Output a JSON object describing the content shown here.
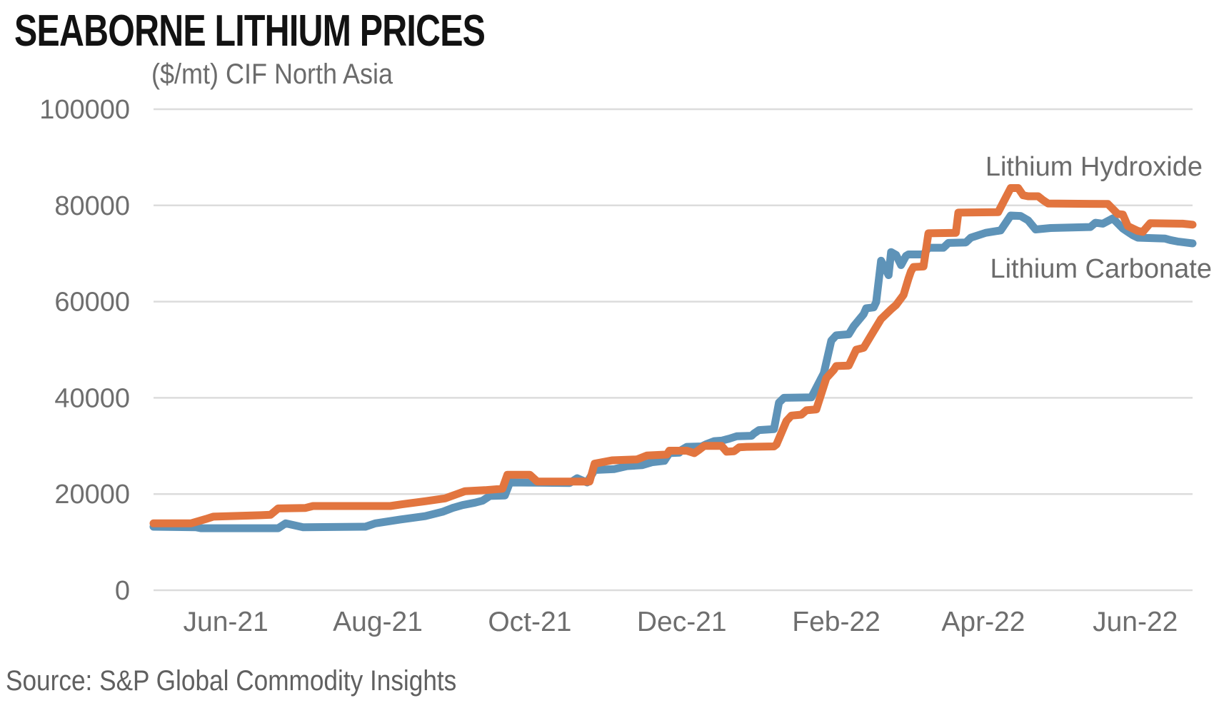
{
  "title": "SEABORNE LITHIUM PRICES",
  "subtitle": "($/mt) CIF North Asia",
  "source": "Source: S&P Global Commodity Insights",
  "colors": {
    "hydroxide": "#E2753F",
    "carbonate": "#5E93B8",
    "grid": "#dcdcdc",
    "axis_text": "#6e6e6e",
    "title_text": "#121212"
  },
  "chart_data": {
    "type": "line",
    "title": "SEABORNE LITHIUM PRICES",
    "subtitle_unit": "($/mt) CIF North Asia",
    "grid": true,
    "legend_position": "inline-right-of-lines",
    "x_axis": {
      "range": [
        "2021-05-03",
        "2022-06-24"
      ],
      "ticks": [
        {
          "label": "Jun-21",
          "date": "2021-06-01"
        },
        {
          "label": "Aug-21",
          "date": "2021-08-01"
        },
        {
          "label": "Oct-21",
          "date": "2021-10-01"
        },
        {
          "label": "Dec-21",
          "date": "2021-12-01"
        },
        {
          "label": "Feb-22",
          "date": "2022-02-01"
        },
        {
          "label": "Apr-22",
          "date": "2022-04-01"
        },
        {
          "label": "Jun-22",
          "date": "2022-06-01"
        }
      ]
    },
    "y_axis": {
      "range": [
        0,
        100000
      ],
      "ticks": [
        {
          "label": "0",
          "value": 0
        },
        {
          "label": "20000",
          "value": 20000
        },
        {
          "label": "40000",
          "value": 40000
        },
        {
          "label": "60000",
          "value": 60000
        },
        {
          "label": "80000",
          "value": 80000
        },
        {
          "label": "100000",
          "value": 100000
        }
      ]
    },
    "series": [
      {
        "name": "Lithium Carbonate",
        "color": "#5E93B8",
        "unit": "$/mt",
        "points": [
          [
            "2021-05-03",
            13200
          ],
          [
            "2021-05-20",
            13100
          ],
          [
            "2021-05-22",
            12900
          ],
          [
            "2021-06-22",
            12900
          ],
          [
            "2021-06-25",
            13900
          ],
          [
            "2021-07-02",
            13100
          ],
          [
            "2021-07-27",
            13200
          ],
          [
            "2021-07-31",
            13900
          ],
          [
            "2021-08-10",
            14700
          ],
          [
            "2021-08-20",
            15400
          ],
          [
            "2021-08-27",
            16300
          ],
          [
            "2021-08-31",
            17100
          ],
          [
            "2021-09-04",
            17700
          ],
          [
            "2021-09-09",
            18200
          ],
          [
            "2021-09-12",
            18600
          ],
          [
            "2021-09-15",
            19600
          ],
          [
            "2021-09-21",
            19700
          ],
          [
            "2021-09-23",
            22400
          ],
          [
            "2021-10-17",
            22300
          ],
          [
            "2021-10-20",
            23300
          ],
          [
            "2021-10-24",
            22400
          ],
          [
            "2021-10-27",
            25000
          ],
          [
            "2021-11-04",
            25200
          ],
          [
            "2021-11-09",
            25800
          ],
          [
            "2021-11-15",
            26000
          ],
          [
            "2021-11-19",
            26600
          ],
          [
            "2021-11-24",
            26900
          ],
          [
            "2021-11-26",
            28500
          ],
          [
            "2021-11-30",
            28600
          ],
          [
            "2021-12-01",
            29200
          ],
          [
            "2021-12-03",
            29800
          ],
          [
            "2021-12-09",
            29900
          ],
          [
            "2021-12-11",
            30400
          ],
          [
            "2021-12-14",
            31000
          ],
          [
            "2021-12-17",
            31100
          ],
          [
            "2021-12-20",
            31500
          ],
          [
            "2021-12-23",
            32000
          ],
          [
            "2021-12-29",
            32100
          ],
          [
            "2021-12-30",
            32600
          ],
          [
            "2022-01-01",
            33300
          ],
          [
            "2022-01-07",
            33500
          ],
          [
            "2022-01-09",
            39000
          ],
          [
            "2022-01-11",
            40000
          ],
          [
            "2022-01-22",
            40100
          ],
          [
            "2022-01-27",
            45100
          ],
          [
            "2022-01-30",
            51900
          ],
          [
            "2022-02-01",
            53000
          ],
          [
            "2022-02-06",
            53200
          ],
          [
            "2022-02-08",
            54900
          ],
          [
            "2022-02-12",
            57400
          ],
          [
            "2022-02-13",
            58600
          ],
          [
            "2022-02-16",
            58800
          ],
          [
            "2022-02-17",
            59900
          ],
          [
            "2022-02-19",
            68500
          ],
          [
            "2022-02-22",
            65500
          ],
          [
            "2022-02-23",
            70300
          ],
          [
            "2022-02-25",
            69700
          ],
          [
            "2022-02-27",
            67600
          ],
          [
            "2022-03-01",
            69500
          ],
          [
            "2022-03-02",
            69800
          ],
          [
            "2022-03-08",
            69800
          ],
          [
            "2022-03-10",
            71200
          ],
          [
            "2022-03-16",
            71200
          ],
          [
            "2022-03-18",
            72200
          ],
          [
            "2022-03-25",
            72300
          ],
          [
            "2022-03-27",
            73300
          ],
          [
            "2022-04-02",
            74300
          ],
          [
            "2022-04-08",
            74800
          ],
          [
            "2022-04-12",
            77900
          ],
          [
            "2022-04-16",
            77800
          ],
          [
            "2022-04-19",
            76900
          ],
          [
            "2022-04-22",
            75000
          ],
          [
            "2022-04-28",
            75300
          ],
          [
            "2022-05-14",
            75500
          ],
          [
            "2022-05-16",
            76400
          ],
          [
            "2022-05-19",
            76200
          ],
          [
            "2022-05-23",
            77300
          ],
          [
            "2022-05-27",
            75200
          ],
          [
            "2022-05-29",
            74500
          ],
          [
            "2022-05-31",
            73800
          ],
          [
            "2022-06-02",
            73300
          ],
          [
            "2022-06-13",
            73100
          ],
          [
            "2022-06-15",
            72800
          ],
          [
            "2022-06-18",
            72500
          ],
          [
            "2022-06-24",
            72100
          ]
        ]
      },
      {
        "name": "Lithium Hydroxide",
        "color": "#E2753F",
        "unit": "$/mt",
        "points": [
          [
            "2021-05-03",
            13900
          ],
          [
            "2021-05-18",
            13900
          ],
          [
            "2021-05-24",
            14800
          ],
          [
            "2021-05-27",
            15300
          ],
          [
            "2021-06-15",
            15600
          ],
          [
            "2021-06-19",
            15700
          ],
          [
            "2021-06-22",
            17000
          ],
          [
            "2021-07-03",
            17100
          ],
          [
            "2021-07-06",
            17500
          ],
          [
            "2021-08-06",
            17500
          ],
          [
            "2021-08-11",
            17900
          ],
          [
            "2021-08-20",
            18500
          ],
          [
            "2021-08-28",
            19100
          ],
          [
            "2021-09-05",
            20600
          ],
          [
            "2021-09-13",
            20800
          ],
          [
            "2021-09-20",
            21100
          ],
          [
            "2021-09-22",
            24000
          ],
          [
            "2021-10-01",
            24000
          ],
          [
            "2021-10-04",
            22600
          ],
          [
            "2021-10-25",
            22600
          ],
          [
            "2021-10-27",
            26300
          ],
          [
            "2021-11-03",
            27000
          ],
          [
            "2021-11-13",
            27200
          ],
          [
            "2021-11-17",
            28000
          ],
          [
            "2021-11-25",
            28200
          ],
          [
            "2021-11-26",
            29000
          ],
          [
            "2021-12-03",
            29000
          ],
          [
            "2021-12-06",
            28500
          ],
          [
            "2021-12-08",
            29200
          ],
          [
            "2021-12-10",
            30000
          ],
          [
            "2021-12-17",
            30000
          ],
          [
            "2021-12-19",
            28800
          ],
          [
            "2021-12-22",
            28900
          ],
          [
            "2021-12-24",
            29700
          ],
          [
            "2021-12-27",
            29800
          ],
          [
            "2022-01-07",
            29900
          ],
          [
            "2022-01-08",
            30300
          ],
          [
            "2022-01-12",
            35200
          ],
          [
            "2022-01-14",
            36300
          ],
          [
            "2022-01-18",
            36500
          ],
          [
            "2022-01-20",
            37400
          ],
          [
            "2022-01-24",
            37600
          ],
          [
            "2022-01-28",
            44100
          ],
          [
            "2022-01-31",
            45800
          ],
          [
            "2022-02-01",
            46600
          ],
          [
            "2022-02-06",
            46700
          ],
          [
            "2022-02-09",
            50000
          ],
          [
            "2022-02-12",
            50400
          ],
          [
            "2022-02-15",
            53000
          ],
          [
            "2022-02-19",
            56400
          ],
          [
            "2022-02-23",
            58400
          ],
          [
            "2022-02-25",
            59300
          ],
          [
            "2022-02-28",
            61400
          ],
          [
            "2022-03-02",
            64800
          ],
          [
            "2022-03-03",
            66300
          ],
          [
            "2022-03-04",
            67200
          ],
          [
            "2022-03-08",
            67300
          ],
          [
            "2022-03-10",
            74200
          ],
          [
            "2022-03-21",
            74300
          ],
          [
            "2022-03-22",
            78500
          ],
          [
            "2022-04-07",
            78600
          ],
          [
            "2022-04-12",
            83600
          ],
          [
            "2022-04-15",
            83600
          ],
          [
            "2022-04-17",
            82100
          ],
          [
            "2022-04-19",
            81900
          ],
          [
            "2022-04-23",
            81900
          ],
          [
            "2022-04-25",
            81100
          ],
          [
            "2022-04-27",
            80400
          ],
          [
            "2022-05-21",
            80300
          ],
          [
            "2022-05-25",
            78200
          ],
          [
            "2022-05-27",
            78100
          ],
          [
            "2022-05-29",
            75700
          ],
          [
            "2022-06-02",
            74700
          ],
          [
            "2022-06-04",
            74500
          ],
          [
            "2022-06-07",
            76300
          ],
          [
            "2022-06-20",
            76200
          ],
          [
            "2022-06-24",
            76000
          ]
        ]
      }
    ]
  }
}
